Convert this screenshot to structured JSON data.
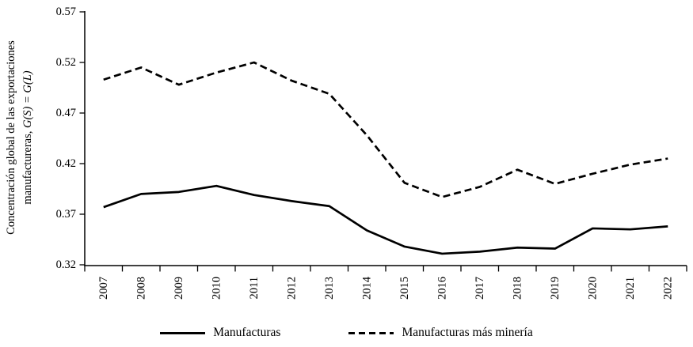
{
  "chart_data": {
    "type": "line",
    "title": "",
    "x": [
      "2007",
      "2008",
      "2009",
      "2010",
      "2011",
      "2012",
      "2013",
      "2014",
      "2015",
      "2016",
      "2017",
      "2018",
      "2019",
      "2020",
      "2021",
      "2022"
    ],
    "series": [
      {
        "name": "Manufacturas",
        "line_style": "solid",
        "color": "#000000",
        "values": [
          0.377,
          0.39,
          0.392,
          0.398,
          0.389,
          0.383,
          0.378,
          0.354,
          0.338,
          0.331,
          0.333,
          0.337,
          0.336,
          0.356,
          0.355,
          0.358
        ]
      },
      {
        "name": "Manufacturas más minería",
        "line_style": "dashed",
        "color": "#000000",
        "values": [
          0.503,
          0.515,
          0.498,
          0.51,
          0.52,
          0.502,
          0.489,
          0.448,
          0.401,
          0.387,
          0.397,
          0.414,
          0.4,
          0.41,
          0.419,
          0.425
        ]
      }
    ],
    "xlabel": "",
    "ylabel": "Concentración global de las exportaciones manufactureras, G(S) = G(L)",
    "ylim": [
      0.32,
      0.57
    ],
    "yticks": [
      0.57,
      0.52,
      0.47,
      0.42,
      0.37,
      0.32
    ],
    "grid": false,
    "legend_position": "bottom",
    "axis_color": "#000000",
    "background": "#ffffff"
  },
  "ylabel_parts": {
    "line1": "Concentración global de las exportaciones",
    "line2_plain": "manufactureras, ",
    "line2_math": "G(S) = G(L)"
  }
}
